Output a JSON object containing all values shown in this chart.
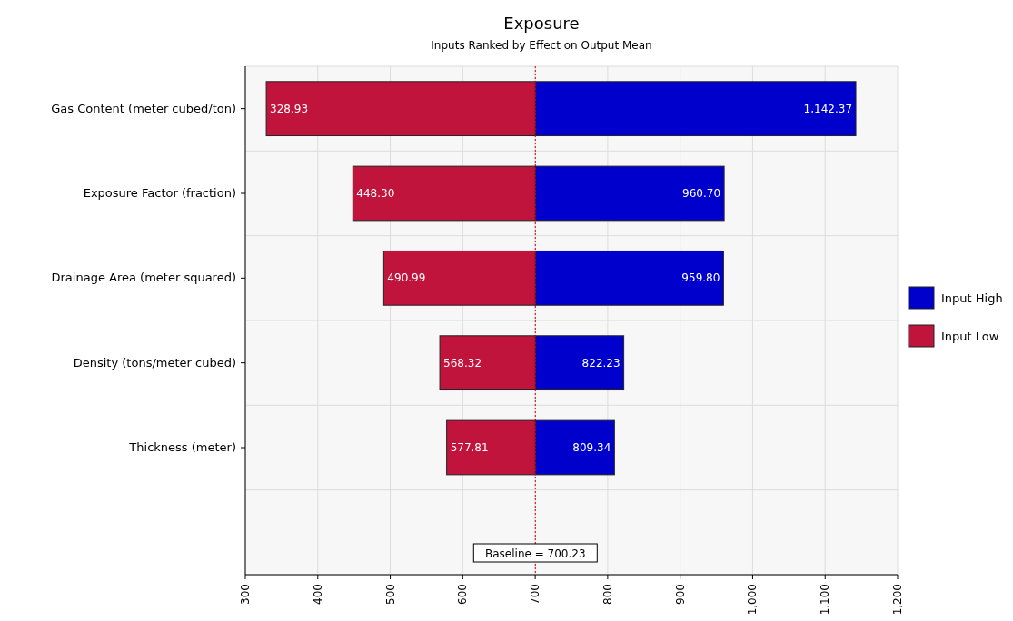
{
  "chart_data": {
    "type": "bar",
    "orientation": "horizontal",
    "title": "Exposure",
    "subtitle": "Inputs Ranked by Effect on Output Mean",
    "categories": [
      "Gas Content (meter cubed/ton)",
      "Exposure Factor (fraction)",
      "Drainage Area (meter squared)",
      "Density (tons/meter cubed)",
      "Thickness (meter)"
    ],
    "series": [
      {
        "name": "Input High",
        "color": "#0000cc",
        "base": [
          700.23,
          700.23,
          700.23,
          700.23,
          700.23
        ],
        "values": [
          442.14,
          260.47,
          259.57,
          122.0,
          109.11
        ],
        "value_labels": [
          "1,142.37",
          "960.70",
          "959.80",
          "822.23",
          "809.34"
        ]
      },
      {
        "name": "Input Low",
        "color": "#c0143c",
        "base": [
          700.23,
          700.23,
          700.23,
          700.23,
          700.23
        ],
        "values": [
          -371.3,
          -251.93,
          -209.24,
          -131.91,
          -122.42
        ],
        "value_labels": [
          "328.93",
          "448.30",
          "490.99",
          "568.32",
          "577.81"
        ]
      }
    ],
    "xlim": [
      300,
      1200
    ],
    "xticks": [
      300,
      400,
      500,
      600,
      700,
      800,
      900,
      {
        "value": 1000,
        "label": "1,000"
      },
      {
        "value": 1100,
        "label": "1,100"
      },
      {
        "value": 1200,
        "label": "1,200"
      }
    ],
    "ref_lines": [
      {
        "axis": "x",
        "value": 700.23,
        "label": "Baseline = 700.23",
        "color": "#cc0000",
        "line_style": "dotted"
      }
    ],
    "grid": true,
    "legend": "right"
  }
}
